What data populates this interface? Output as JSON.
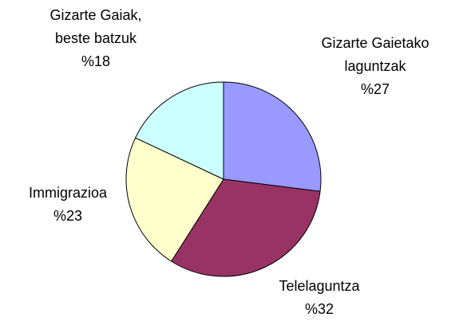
{
  "chart_data": {
    "type": "pie",
    "categories": [
      "Gizarte Gaietako laguntzak",
      "Telelaguntza",
      "Immigrazioa",
      "Gizarte Gaiak, beste batzuk"
    ],
    "values": [
      27,
      32,
      23,
      18
    ],
    "value_labels": [
      "%27",
      "%32",
      "%23",
      "%18"
    ],
    "colors": [
      "#9999ff",
      "#993366",
      "#ffffcc",
      "#ccffff"
    ]
  }
}
